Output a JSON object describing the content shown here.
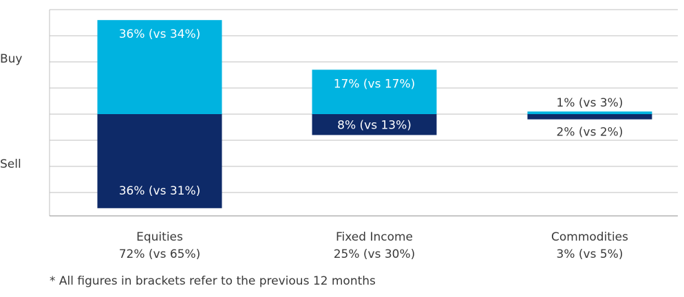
{
  "chart_data": {
    "type": "bar",
    "title": "",
    "side_labels": {
      "top": "Buy",
      "bottom": "Sell"
    },
    "categories": [
      "Equities",
      "Fixed Income",
      "Commodities"
    ],
    "category_totals": [
      "72% (vs 65%)",
      "25% (vs 30%)",
      "3% (vs 5%)"
    ],
    "series": [
      {
        "name": "Buy",
        "values": [
          36,
          17,
          1
        ],
        "previous": [
          34,
          17,
          3
        ],
        "labels": [
          "36% (vs 34%)",
          "17% (vs 17%)",
          "1% (vs 3%)"
        ]
      },
      {
        "name": "Sell",
        "values": [
          36,
          8,
          2
        ],
        "previous": [
          31,
          13,
          2
        ],
        "labels": [
          "36% (vs 31%)",
          "8% (vs 13%)",
          "2% (vs 2%)"
        ]
      }
    ],
    "ylim": [
      -37,
      40
    ],
    "grid": true,
    "colors": {
      "buy": "#00b3e0",
      "sell": "#0e2a68",
      "grid": "#bfbfbf",
      "text": "#3a3a3a"
    }
  },
  "footnote": "* All figures in brackets refer to the previous 12 months"
}
